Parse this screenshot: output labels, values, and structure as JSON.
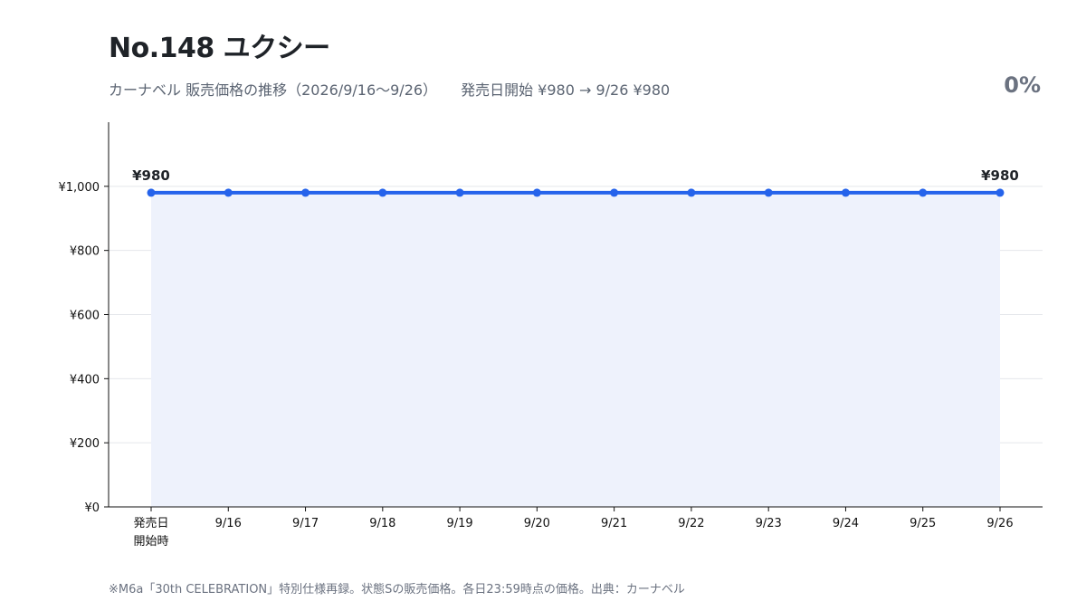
{
  "header": {
    "title": "No.148 ユクシー",
    "subtitle_main": "カーナベル 販売価格の推移（2026/9/16〜9/26）",
    "subtitle_summary": "発売日開始 ¥980 → 9/26 ¥980",
    "change": "0%"
  },
  "footnote": "※M6a「30th CELEBRATION」特別仕様再録。状態Sの販売価格。各日23:59時点の価格。出典：カーナベル",
  "colors": {
    "line": "#2563eb",
    "area": "#eef2fc",
    "grid": "#e5e7eb",
    "axis": "#111111"
  },
  "chart_data": {
    "type": "line",
    "categories": [
      "発売日\n開始時",
      "9/16",
      "9/17",
      "9/18",
      "9/19",
      "9/20",
      "9/21",
      "9/22",
      "9/23",
      "9/24",
      "9/25",
      "9/26"
    ],
    "series": [
      {
        "values": [
          980,
          980,
          980,
          980,
          980,
          980,
          980,
          980,
          980,
          980,
          980,
          980
        ]
      }
    ],
    "ylim": [
      0,
      1200
    ],
    "yticks": [
      0,
      200,
      400,
      600,
      800,
      1000
    ],
    "ytick_labels": [
      "¥0",
      "¥200",
      "¥400",
      "¥600",
      "¥800",
      "¥1,000"
    ],
    "data_labels": [
      {
        "index": 0,
        "text": "¥980"
      },
      {
        "index": 11,
        "text": "¥980"
      }
    ],
    "grid": true,
    "area_fill": true
  }
}
